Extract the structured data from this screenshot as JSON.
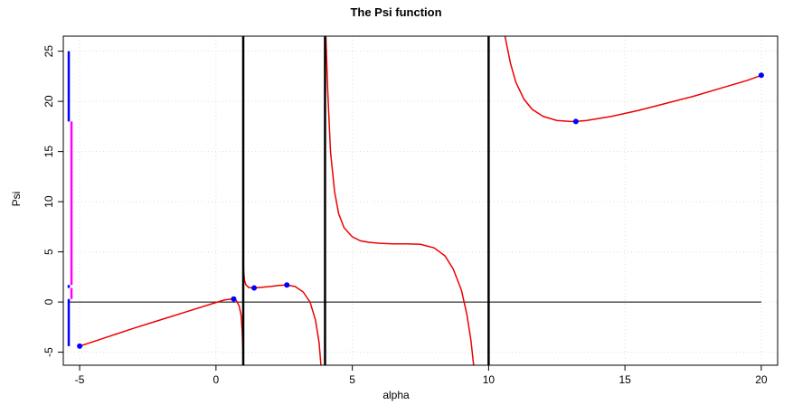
{
  "chart_data": {
    "type": "line",
    "title": "The Psi function",
    "xlabel": "alpha",
    "ylabel": "Psi",
    "xlim": [
      -5.6,
      20.6
    ],
    "ylim": [
      -6.3,
      26.5
    ],
    "xticks": [
      -5,
      0,
      5,
      10,
      15,
      20
    ],
    "yticks": [
      -5,
      0,
      5,
      10,
      15,
      20,
      25
    ],
    "grid": true,
    "colors": {
      "curve": "#ee0000",
      "points": "#0000ff",
      "vlines": "#000000",
      "hline": "#000000",
      "blue_bar": "#0000ff",
      "magenta_bar": "#ff00ff",
      "grid": "#dddddd"
    },
    "horizontal_line_y": 0,
    "vertical_asymptotes": [
      1,
      4,
      10
    ],
    "series": [
      {
        "segment": "alpha < 1",
        "x": [
          -5.0,
          -4.0,
          -3.0,
          -2.0,
          -1.0,
          0.0,
          0.3,
          0.55,
          0.65,
          0.75,
          0.85,
          0.92,
          0.96,
          0.985,
          0.995
        ],
        "y": [
          -4.4,
          -3.5,
          -2.6,
          -1.75,
          -0.9,
          -0.05,
          0.2,
          0.3,
          0.28,
          0.15,
          -0.4,
          -1.3,
          -2.8,
          -4.6,
          -6.3
        ]
      },
      {
        "segment": "1 < alpha < 4",
        "x": [
          1.005,
          1.02,
          1.05,
          1.1,
          1.2,
          1.35,
          1.6,
          2.0,
          2.3,
          2.6,
          2.9,
          3.2,
          3.45,
          3.65,
          3.78,
          3.85
        ],
        "y": [
          3.9,
          2.9,
          2.1,
          1.7,
          1.45,
          1.4,
          1.45,
          1.55,
          1.65,
          1.7,
          1.55,
          1.0,
          0.0,
          -1.8,
          -4.0,
          -6.3
        ]
      },
      {
        "segment": "4 < alpha < 10",
        "x": [
          4.03,
          4.1,
          4.2,
          4.35,
          4.5,
          4.7,
          5.0,
          5.3,
          5.6,
          6.0,
          6.5,
          7.0,
          7.5,
          8.0,
          8.4,
          8.7,
          9.0,
          9.2,
          9.35,
          9.45
        ],
        "y": [
          26.5,
          21.0,
          15.0,
          11.0,
          8.8,
          7.4,
          6.5,
          6.1,
          5.95,
          5.85,
          5.8,
          5.8,
          5.75,
          5.4,
          4.6,
          3.3,
          1.2,
          -1.2,
          -3.8,
          -6.3
        ]
      },
      {
        "segment": "alpha > 10",
        "x": [
          10.6,
          10.8,
          11.0,
          11.3,
          11.6,
          12.0,
          12.5,
          13.0,
          13.2,
          13.6,
          14.5,
          15.5,
          16.5,
          17.5,
          18.5,
          19.5,
          20.0
        ],
        "y": [
          26.5,
          23.8,
          21.9,
          20.2,
          19.2,
          18.5,
          18.1,
          18.0,
          18.0,
          18.1,
          18.5,
          19.1,
          19.8,
          20.5,
          21.3,
          22.1,
          22.6
        ]
      }
    ],
    "points": [
      {
        "x": -5.0,
        "y": -4.4
      },
      {
        "x": 0.65,
        "y": 0.3
      },
      {
        "x": 1.4,
        "y": 1.4
      },
      {
        "x": 2.6,
        "y": 1.7
      },
      {
        "x": 13.2,
        "y": 18.0
      },
      {
        "x": 20.0,
        "y": 22.6
      }
    ],
    "bars": [
      {
        "color": "blue",
        "x": -5.4,
        "y0": 18.0,
        "y1": 25.0
      },
      {
        "color": "blue",
        "x": -5.4,
        "y0": -4.4,
        "y1": 0.3
      },
      {
        "color": "blue",
        "x": -5.4,
        "y0": 1.4,
        "y1": 1.7
      },
      {
        "color": "magenta",
        "x": -5.3,
        "y0": 1.7,
        "y1": 18.0
      },
      {
        "color": "magenta",
        "x": -5.3,
        "y0": 0.3,
        "y1": 1.4
      }
    ]
  }
}
